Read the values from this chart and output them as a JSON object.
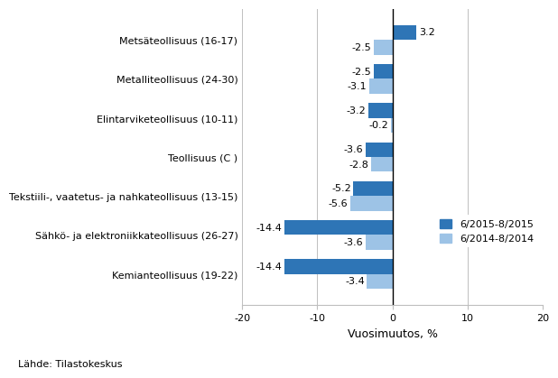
{
  "categories": [
    "Kemianteollisuus (19-22)",
    "Sähkö- ja elektroniikkateollisuus (26-27)",
    "Tekstiili-, vaatetus- ja nahkateollisuus (13-15)",
    "Teollisuus (C )",
    "Elintarviketeollisuus (10-11)",
    "Metalliteollisuus (24-30)",
    "Metsäteollisuus (16-17)"
  ],
  "series1_values": [
    -14.4,
    -14.4,
    -5.2,
    -3.6,
    -3.2,
    -2.5,
    3.2
  ],
  "series2_values": [
    -3.4,
    -3.6,
    -5.6,
    -2.8,
    -0.2,
    -3.1,
    -2.5
  ],
  "series1_label": "6/2015-8/2015",
  "series2_label": "6/2014-8/2014",
  "series1_color": "#2E75B6",
  "series2_color": "#9DC3E6",
  "xlim": [
    -20,
    20
  ],
  "xticks": [
    -20,
    -10,
    0,
    10,
    20
  ],
  "xlabel": "Vuosimuutos, %",
  "source": "Lähde: Tilastokeskus",
  "bar_height": 0.38,
  "grid_color": "#BEBEBE",
  "label_fontsize": 8,
  "tick_fontsize": 8,
  "legend_fontsize": 8,
  "xlabel_fontsize": 9
}
